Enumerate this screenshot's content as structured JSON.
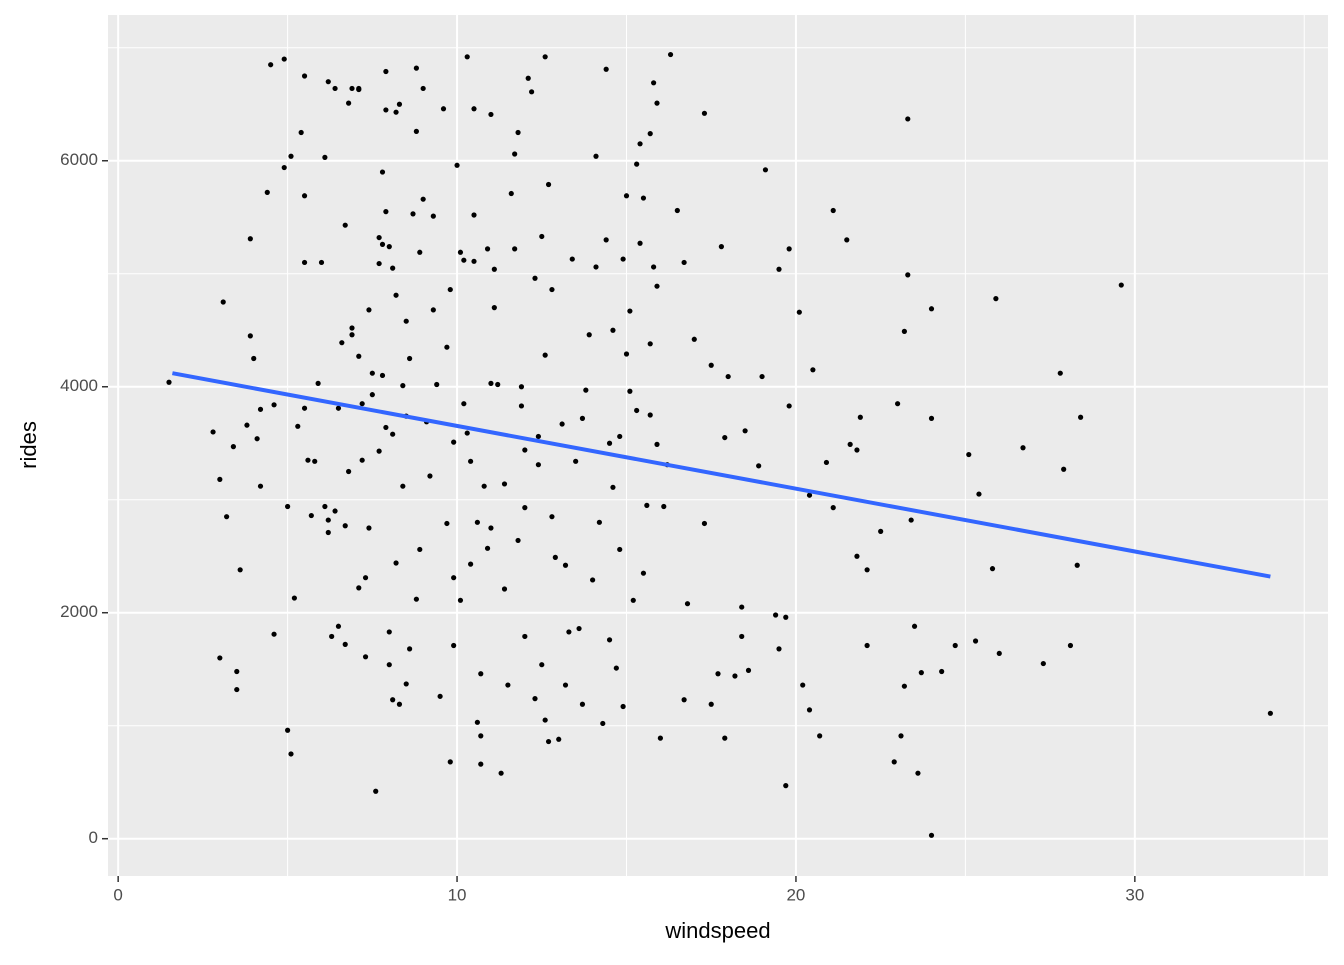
{
  "chart_data": {
    "type": "scatter",
    "x_label": "windspeed",
    "y_label": "rides",
    "xlim": [
      -0.3,
      35.7
    ],
    "ylim": [
      -330,
      7290
    ],
    "xticks": [
      0,
      10,
      20,
      30
    ],
    "yticks": [
      0,
      2000,
      4000,
      6000
    ],
    "grid": true,
    "color": "#000000",
    "background": "#ebebeb",
    "x": [
      1.5,
      2.8,
      3.0,
      3.2,
      3.1,
      3.0,
      3.5,
      3.5,
      3.4,
      3.6,
      3.8,
      3.9,
      4.0,
      3.9,
      4.1,
      4.2,
      4.2,
      4.4,
      4.5,
      4.6,
      4.6,
      4.9,
      4.9,
      5.0,
      5.0,
      5.1,
      5.1,
      5.2,
      5.3,
      5.5,
      5.5,
      5.4,
      5.5,
      5.5,
      5.6,
      5.7,
      5.8,
      5.9,
      6.0,
      6.1,
      6.2,
      6.1,
      6.2,
      6.2,
      6.3,
      6.4,
      6.4,
      6.5,
      6.5,
      6.6,
      6.7,
      6.7,
      6.7,
      6.8,
      6.8,
      6.9,
      6.9,
      6.9,
      7.1,
      7.1,
      7.1,
      7.2,
      7.1,
      7.2,
      7.3,
      7.3,
      7.4,
      7.4,
      7.5,
      7.5,
      7.6,
      7.7,
      7.7,
      7.7,
      7.8,
      7.8,
      7.8,
      7.9,
      7.9,
      7.9,
      7.9,
      8.0,
      8.0,
      8.0,
      8.1,
      8.1,
      8.1,
      8.2,
      8.2,
      8.2,
      8.3,
      8.3,
      8.4,
      8.4,
      8.5,
      8.5,
      8.5,
      8.6,
      8.6,
      8.7,
      8.8,
      8.8,
      8.8,
      8.9,
      8.9,
      9.0,
      9.0,
      9.1,
      9.2,
      9.3,
      9.3,
      9.4,
      9.5,
      9.6,
      9.7,
      9.7,
      9.8,
      9.8,
      9.9,
      9.9,
      9.9,
      10.0,
      10.1,
      10.1,
      10.2,
      10.2,
      10.3,
      10.3,
      10.4,
      10.4,
      10.5,
      10.5,
      10.5,
      10.6,
      10.6,
      10.7,
      10.7,
      10.7,
      10.8,
      10.9,
      10.9,
      11.0,
      11.0,
      11.0,
      11.1,
      11.1,
      11.2,
      11.3,
      11.4,
      11.4,
      11.5,
      11.6,
      11.7,
      11.7,
      11.8,
      11.8,
      11.9,
      11.9,
      12.0,
      12.0,
      12.0,
      12.1,
      12.2,
      12.3,
      12.3,
      12.4,
      12.4,
      12.5,
      12.5,
      12.6,
      12.6,
      12.6,
      12.7,
      12.7,
      12.8,
      12.8,
      12.9,
      13.0,
      13.1,
      13.2,
      13.2,
      13.3,
      13.4,
      13.5,
      13.6,
      13.7,
      13.7,
      13.8,
      13.9,
      14.0,
      14.1,
      14.1,
      14.2,
      14.3,
      14.4,
      14.4,
      14.5,
      14.5,
      14.6,
      14.6,
      14.7,
      14.8,
      14.8,
      14.9,
      14.9,
      15.0,
      15.0,
      15.1,
      15.1,
      15.2,
      15.3,
      15.3,
      15.4,
      15.4,
      15.5,
      15.5,
      15.6,
      15.7,
      15.7,
      15.7,
      15.8,
      15.8,
      15.9,
      15.9,
      15.9,
      16.0,
      16.1,
      16.2,
      16.3,
      16.5,
      16.7,
      16.7,
      16.8,
      17.0,
      17.3,
      17.3,
      17.5,
      17.5,
      17.7,
      17.8,
      17.9,
      17.9,
      18.0,
      18.2,
      18.4,
      18.4,
      18.5,
      18.6,
      18.9,
      19.0,
      19.1,
      19.4,
      19.5,
      19.5,
      19.7,
      19.7,
      19.8,
      19.8,
      20.1,
      20.2,
      20.4,
      20.4,
      20.5,
      20.7,
      20.9,
      21.1,
      21.1,
      21.5,
      21.6,
      21.8,
      21.8,
      21.9,
      22.1,
      22.1,
      22.5,
      22.9,
      23.0,
      23.1,
      23.2,
      23.2,
      23.3,
      23.3,
      23.4,
      23.5,
      23.6,
      23.7,
      24.0,
      24.0,
      24.0,
      24.3,
      24.7,
      25.1,
      25.3,
      25.4,
      25.8,
      25.9,
      26.0,
      26.7,
      27.3,
      27.8,
      27.9,
      28.1,
      28.3,
      28.4,
      29.6,
      34.0
    ],
    "values": [
      4040,
      3600,
      3180,
      2850,
      4750,
      1600,
      1480,
      1320,
      3470,
      2380,
      3660,
      4450,
      4250,
      5310,
      3540,
      3800,
      3120,
      5720,
      6850,
      1810,
      3840,
      6900,
      5940,
      960,
      2940,
      750,
      6040,
      2130,
      3650,
      3810,
      6750,
      6250,
      5690,
      5100,
      3350,
      2860,
      3340,
      4030,
      5100,
      6030,
      6700,
      2940,
      2820,
      2710,
      1790,
      6640,
      2900,
      1880,
      3810,
      4390,
      2770,
      1720,
      5430,
      3250,
      6510,
      4460,
      6640,
      4520,
      6640,
      6630,
      2220,
      3350,
      4270,
      3850,
      1610,
      2310,
      2750,
      4680,
      4120,
      3930,
      420,
      3430,
      5320,
      5090,
      5900,
      5260,
      4100,
      3640,
      6450,
      6790,
      5550,
      5240,
      1540,
      1830,
      3580,
      5050,
      1230,
      4810,
      6430,
      2440,
      1190,
      6500,
      4010,
      3120,
      1370,
      3740,
      4580,
      4250,
      1680,
      5530,
      2120,
      6820,
      6260,
      5190,
      2560,
      5660,
      6640,
      3690,
      3210,
      5510,
      4680,
      4020,
      1260,
      6460,
      2790,
      4350,
      4860,
      680,
      1710,
      2310,
      3510,
      5960,
      5190,
      2110,
      3850,
      5120,
      3590,
      6920,
      3340,
      2430,
      5110,
      5520,
      6460,
      2800,
      1030,
      1460,
      910,
      660,
      3120,
      5220,
      2570,
      6410,
      4030,
      2750,
      5040,
      4700,
      4020,
      580,
      2210,
      3140,
      1360,
      5710,
      5220,
      6060,
      6250,
      2640,
      3830,
      4000,
      2930,
      1790,
      3440,
      6730,
      6610,
      4960,
      1240,
      3560,
      3310,
      5330,
      1540,
      6920,
      1050,
      4280,
      5790,
      860,
      4860,
      2850,
      2490,
      880,
      3670,
      1360,
      2420,
      1830,
      5130,
      3340,
      1860,
      1190,
      3720,
      3970,
      4460,
      2290,
      6040,
      5060,
      2800,
      1020,
      5300,
      6810,
      3500,
      1760,
      4500,
      3110,
      1510,
      3560,
      2560,
      5130,
      1170,
      5690,
      4290,
      3960,
      4670,
      2110,
      5970,
      3790,
      6150,
      5270,
      5670,
      2350,
      2950,
      4380,
      3750,
      6240,
      5060,
      6690,
      6510,
      4890,
      3490,
      890,
      2940,
      3310,
      6940,
      5560,
      1230,
      5100,
      2080,
      4420,
      2790,
      6420,
      1190,
      4190,
      1460,
      5240,
      890,
      3550,
      4090,
      1440,
      2050,
      1790,
      3610,
      1490,
      3300,
      4090,
      5920,
      1980,
      1680,
      5040,
      1960,
      470,
      3830,
      5220,
      4660,
      1360,
      3040,
      1140,
      4150,
      910,
      3330,
      5560,
      2930,
      5300,
      3490,
      2500,
      3440,
      3730,
      2380,
      1710,
      2720,
      680,
      3850,
      910,
      4490,
      1350,
      6370,
      4990,
      2820,
      1880,
      580,
      1470,
      3720,
      4690,
      30,
      1480,
      1710,
      3400,
      1750,
      3050,
      2390,
      4780,
      1640,
      3460,
      1550,
      4120,
      3270,
      1710,
      2420,
      3730,
      4900,
      1110
    ],
    "trend": {
      "x": [
        1.6,
        34.0
      ],
      "values": [
        4120,
        2320
      ],
      "color": "#3366FF"
    }
  }
}
